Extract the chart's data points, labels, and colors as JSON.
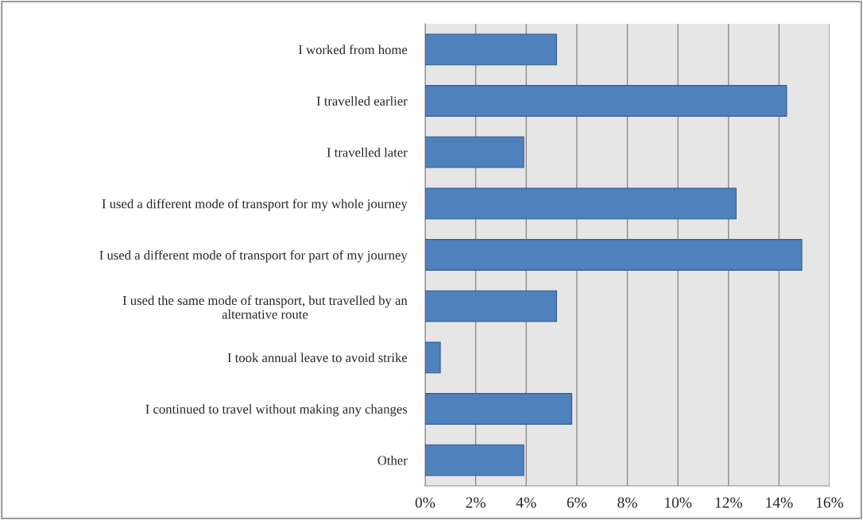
{
  "chart_data": {
    "type": "bar",
    "orientation": "horizontal",
    "categories": [
      "I worked from home",
      "I travelled earlier",
      "I travelled later",
      "I used a different mode of transport for my whole journey",
      "I used a different mode of transport for part of my journey",
      "I used the same mode of transport, but travelled by an\nalternative route",
      "I took annual leave to avoid strike",
      "I continued to travel without making any changes",
      "Other"
    ],
    "values": [
      5.2,
      14.3,
      3.9,
      12.3,
      14.9,
      5.2,
      0.6,
      5.8,
      3.9
    ],
    "color": "#4f81bd",
    "xlim": [
      0,
      16
    ],
    "xticks": [
      {
        "value": 0,
        "label": "0%"
      },
      {
        "value": 2,
        "label": "2%"
      },
      {
        "value": 4,
        "label": "4%"
      },
      {
        "value": 6,
        "label": "6%"
      },
      {
        "value": 8,
        "label": "8%"
      },
      {
        "value": 10,
        "label": "10%"
      },
      {
        "value": 12,
        "label": "12%"
      },
      {
        "value": 14,
        "label": "14%"
      },
      {
        "value": 16,
        "label": "16%"
      }
    ],
    "grid": "x",
    "legend": false
  }
}
